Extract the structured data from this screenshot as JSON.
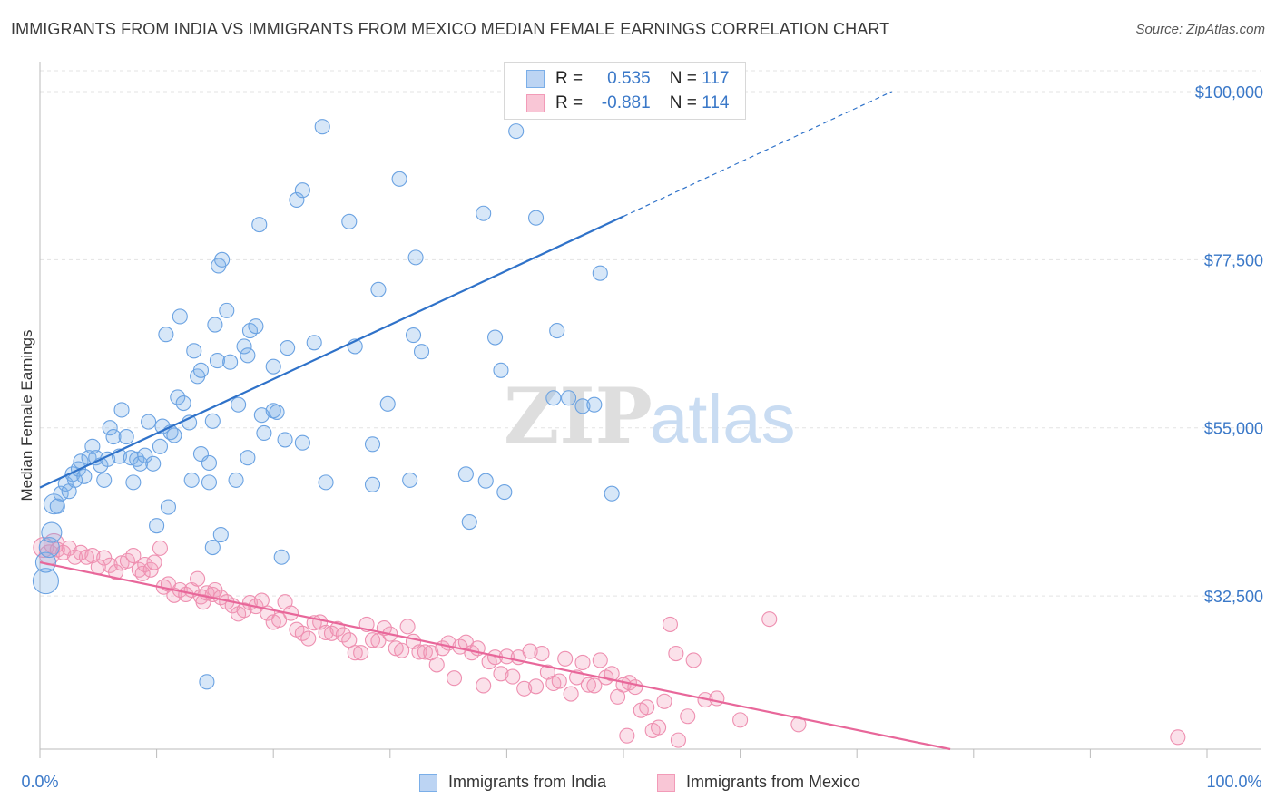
{
  "title": "IMMIGRANTS FROM INDIA VS IMMIGRANTS FROM MEXICO MEDIAN FEMALE EARNINGS CORRELATION CHART",
  "source": "Source: ZipAtlas.com",
  "watermark": {
    "zip": "ZIP",
    "atlas": "atlas"
  },
  "colors": {
    "india": "#7aaee8",
    "mexico": "#f29bb8",
    "india_line": "#2f72c9",
    "mexico_line": "#e8679a",
    "tick_text": "#3a78c8"
  },
  "legend": {
    "india": {
      "r_label": "R =",
      "r_value": "0.535",
      "n_label": "N =",
      "n_value": "117"
    },
    "mexico": {
      "r_label": "R =",
      "r_value": "-0.881",
      "n_label": "N =",
      "n_value": "114"
    }
  },
  "chart_data": {
    "type": "scatter",
    "title": "IMMIGRANTS FROM INDIA VS IMMIGRANTS FROM MEXICO MEDIAN FEMALE EARNINGS CORRELATION CHART",
    "xlabel": "",
    "ylabel": "Median Female Earnings",
    "xlim": [
      0,
      100
    ],
    "ylim": [
      12000,
      104000
    ],
    "x_ticks": [
      "0.0%",
      "100.0%"
    ],
    "y_ticks": [
      {
        "value": 32500,
        "label": "$32,500"
      },
      {
        "value": 55000,
        "label": "$55,000"
      },
      {
        "value": 77500,
        "label": "$77,500"
      },
      {
        "value": 100000,
        "label": "$100,000"
      }
    ],
    "grid": true,
    "legend_position": "top-center",
    "series": [
      {
        "name": "Immigrants from India",
        "r": 0.535,
        "n": 117,
        "trend": {
          "x0": 0,
          "y0": 47000,
          "x1": 50,
          "y1": 83300,
          "dashed_to_x": 73,
          "dashed_to_y": 100000
        },
        "points": [
          [
            0.5,
            34500,
            3
          ],
          [
            0.5,
            37000,
            2
          ],
          [
            0.8,
            39000,
            2
          ],
          [
            1,
            41000,
            2
          ],
          [
            1.2,
            44800,
            2
          ],
          [
            1.5,
            44500,
            1
          ],
          [
            1.8,
            46200,
            1
          ],
          [
            2.2,
            47500,
            1
          ],
          [
            2.5,
            46500,
            1
          ],
          [
            2.8,
            48800,
            1
          ],
          [
            3,
            48000,
            1
          ],
          [
            3.3,
            49500,
            1
          ],
          [
            3.5,
            50500,
            1
          ],
          [
            3.8,
            48500,
            1
          ],
          [
            4.2,
            51000,
            1
          ],
          [
            4.5,
            52500,
            1
          ],
          [
            4.8,
            51000,
            1
          ],
          [
            5.2,
            50000,
            1
          ],
          [
            5.5,
            48000,
            1
          ],
          [
            5.8,
            50800,
            1
          ],
          [
            6,
            55000,
            1
          ],
          [
            6.3,
            53800,
            1
          ],
          [
            6.8,
            51200,
            1
          ],
          [
            7,
            57400,
            1
          ],
          [
            7.4,
            53800,
            1
          ],
          [
            7.8,
            51000,
            1
          ],
          [
            8,
            47700,
            1
          ],
          [
            8.3,
            50800,
            1
          ],
          [
            8.6,
            50200,
            1
          ],
          [
            9,
            51300,
            1
          ],
          [
            9.3,
            55800,
            1
          ],
          [
            9.7,
            50200,
            1
          ],
          [
            10,
            41900,
            1
          ],
          [
            10.3,
            52500,
            1
          ],
          [
            10.5,
            55200,
            1
          ],
          [
            10.8,
            67500,
            1
          ],
          [
            11,
            44400,
            1
          ],
          [
            11.2,
            54400,
            1
          ],
          [
            11.5,
            54000,
            1
          ],
          [
            11.8,
            59100,
            1
          ],
          [
            12,
            69900,
            1
          ],
          [
            12.3,
            58300,
            1
          ],
          [
            12.8,
            55700,
            1
          ],
          [
            13,
            48000,
            1
          ],
          [
            13.2,
            65300,
            1
          ],
          [
            13.5,
            61900,
            1
          ],
          [
            13.8,
            62700,
            1
          ],
          [
            13.8,
            51500,
            1
          ],
          [
            14.5,
            50300,
            1
          ],
          [
            14.8,
            39000,
            1
          ],
          [
            15,
            68800,
            1
          ],
          [
            15.2,
            64000,
            1
          ],
          [
            15.5,
            40700,
            1
          ],
          [
            14.5,
            47700,
            1
          ],
          [
            14.3,
            21000,
            1
          ],
          [
            14.8,
            55900,
            1
          ],
          [
            15.3,
            76700,
            1
          ],
          [
            15.6,
            77500,
            1
          ],
          [
            16,
            70700,
            1
          ],
          [
            16.3,
            63800,
            1
          ],
          [
            16.8,
            48000,
            1
          ],
          [
            17,
            58100,
            1
          ],
          [
            17.5,
            65900,
            1
          ],
          [
            17.8,
            51000,
            1
          ],
          [
            17.8,
            64700,
            1
          ],
          [
            18,
            68000,
            1
          ],
          [
            18.5,
            68600,
            1
          ],
          [
            18.8,
            82200,
            1
          ],
          [
            19,
            56700,
            1
          ],
          [
            19.2,
            54300,
            1
          ],
          [
            20,
            63200,
            1
          ],
          [
            20,
            57300,
            1
          ],
          [
            20.3,
            57100,
            1
          ],
          [
            20.7,
            37700,
            1
          ],
          [
            21,
            53400,
            1
          ],
          [
            21.2,
            65700,
            1
          ],
          [
            22,
            85500,
            1
          ],
          [
            22.5,
            86800,
            1
          ],
          [
            22.5,
            53000,
            1
          ],
          [
            23.5,
            66400,
            1
          ],
          [
            24.2,
            95300,
            1
          ],
          [
            24.5,
            47700,
            1
          ],
          [
            26.5,
            82600,
            1
          ],
          [
            27,
            65900,
            1
          ],
          [
            28.5,
            52800,
            1
          ],
          [
            29,
            73500,
            1
          ],
          [
            28.5,
            47400,
            1
          ],
          [
            29.8,
            58200,
            1
          ],
          [
            30.8,
            88300,
            1
          ],
          [
            31.7,
            48000,
            1
          ],
          [
            32,
            67400,
            1
          ],
          [
            32.2,
            77800,
            1
          ],
          [
            32.7,
            65200,
            1
          ],
          [
            36.5,
            48800,
            1
          ],
          [
            36.8,
            42400,
            1
          ],
          [
            38,
            83700,
            1
          ],
          [
            38.2,
            47900,
            1
          ],
          [
            39,
            67100,
            1
          ],
          [
            39.5,
            62700,
            1
          ],
          [
            39.8,
            46400,
            1
          ],
          [
            40.8,
            94700,
            1
          ],
          [
            42.5,
            83100,
            1
          ],
          [
            44,
            59000,
            1
          ],
          [
            44.3,
            68000,
            1
          ],
          [
            45.3,
            59000,
            1
          ],
          [
            46.5,
            57900,
            1
          ],
          [
            47.5,
            58100,
            1
          ],
          [
            48,
            75700,
            1
          ],
          [
            49,
            46200,
            1
          ]
        ]
      },
      {
        "name": "Immigrants from Mexico",
        "r": -0.881,
        "n": 114,
        "trend": {
          "x0": 0,
          "y0": 37000,
          "x1": 78,
          "y1": 12000
        },
        "points": [
          [
            0.3,
            39000,
            2
          ],
          [
            0.8,
            38000,
            2
          ],
          [
            1.2,
            39500,
            2
          ],
          [
            1.5,
            38700,
            1
          ],
          [
            2,
            38300,
            1
          ],
          [
            2.5,
            38900,
            1
          ],
          [
            3,
            37700,
            1
          ],
          [
            3.5,
            38300,
            1
          ],
          [
            4,
            37700,
            1
          ],
          [
            4.5,
            37900,
            1
          ],
          [
            5,
            36400,
            1
          ],
          [
            5.5,
            37600,
            1
          ],
          [
            6,
            36600,
            1
          ],
          [
            6.5,
            35700,
            1
          ],
          [
            7,
            36900,
            1
          ],
          [
            7.5,
            37200,
            1
          ],
          [
            8,
            37900,
            1
          ],
          [
            8.5,
            36000,
            1
          ],
          [
            8.8,
            35500,
            1
          ],
          [
            9,
            36700,
            1
          ],
          [
            9.5,
            36000,
            1
          ],
          [
            9.8,
            37000,
            1
          ],
          [
            10.3,
            38900,
            1
          ],
          [
            10.6,
            33700,
            1
          ],
          [
            11,
            34100,
            1
          ],
          [
            11.5,
            32600,
            1
          ],
          [
            12,
            33300,
            1
          ],
          [
            12.5,
            32700,
            1
          ],
          [
            13,
            33300,
            1
          ],
          [
            13.5,
            34800,
            1
          ],
          [
            13.8,
            32400,
            1
          ],
          [
            14,
            31700,
            1
          ],
          [
            14.3,
            32900,
            1
          ],
          [
            14.8,
            32700,
            1
          ],
          [
            15,
            33300,
            1
          ],
          [
            15.5,
            32300,
            1
          ],
          [
            16,
            31700,
            1
          ],
          [
            16.5,
            31200,
            1
          ],
          [
            17,
            30100,
            1
          ],
          [
            17.5,
            30600,
            1
          ],
          [
            18,
            31600,
            1
          ],
          [
            18.5,
            31100,
            1
          ],
          [
            19,
            31900,
            1
          ],
          [
            19.5,
            30200,
            1
          ],
          [
            20,
            29000,
            1
          ],
          [
            20.5,
            29300,
            1
          ],
          [
            21,
            31700,
            1
          ],
          [
            21.5,
            30200,
            1
          ],
          [
            22,
            28000,
            1
          ],
          [
            22.5,
            27500,
            1
          ],
          [
            23,
            26800,
            1
          ],
          [
            23.5,
            28900,
            1
          ],
          [
            24,
            29000,
            1
          ],
          [
            24.5,
            27600,
            1
          ],
          [
            25,
            27500,
            1
          ],
          [
            25.5,
            28100,
            1
          ],
          [
            26,
            27300,
            1
          ],
          [
            26.5,
            26600,
            1
          ],
          [
            27,
            24900,
            1
          ],
          [
            27.5,
            24900,
            1
          ],
          [
            28,
            28700,
            1
          ],
          [
            28.5,
            26600,
            1
          ],
          [
            29,
            26500,
            1
          ],
          [
            29.5,
            28200,
            1
          ],
          [
            30,
            27400,
            1
          ],
          [
            30.5,
            25500,
            1
          ],
          [
            31,
            25200,
            1
          ],
          [
            31.5,
            28400,
            1
          ],
          [
            32,
            26400,
            1
          ],
          [
            32.5,
            25000,
            1
          ],
          [
            33,
            25000,
            1
          ],
          [
            33.5,
            24900,
            1
          ],
          [
            34,
            23300,
            1
          ],
          [
            34.5,
            25500,
            1
          ],
          [
            35,
            26200,
            1
          ],
          [
            35.5,
            21500,
            1
          ],
          [
            36,
            25700,
            1
          ],
          [
            36.5,
            26300,
            1
          ],
          [
            37,
            24900,
            1
          ],
          [
            37.5,
            25500,
            1
          ],
          [
            38,
            20500,
            1
          ],
          [
            38.5,
            23700,
            1
          ],
          [
            39,
            24300,
            1
          ],
          [
            39.5,
            22100,
            1
          ],
          [
            40,
            24400,
            1
          ],
          [
            40.5,
            21700,
            1
          ],
          [
            41,
            24300,
            1
          ],
          [
            41.5,
            20100,
            1
          ],
          [
            42,
            25100,
            1
          ],
          [
            42.5,
            20400,
            1
          ],
          [
            43,
            24800,
            1
          ],
          [
            43.5,
            22300,
            1
          ],
          [
            44,
            20800,
            1
          ],
          [
            44.5,
            21100,
            1
          ],
          [
            45,
            24100,
            1
          ],
          [
            45.5,
            19400,
            1
          ],
          [
            46,
            21600,
            1
          ],
          [
            46.5,
            23600,
            1
          ],
          [
            47,
            20600,
            1
          ],
          [
            47.5,
            20500,
            1
          ],
          [
            48,
            23900,
            1
          ],
          [
            48.5,
            21600,
            1
          ],
          [
            49,
            22100,
            1
          ],
          [
            49.5,
            19000,
            1
          ],
          [
            50,
            20600,
            1
          ],
          [
            50.5,
            20900,
            1
          ],
          [
            51,
            20300,
            1
          ],
          [
            51.5,
            17200,
            1
          ],
          [
            52,
            17600,
            1
          ],
          [
            52.5,
            14500,
            1
          ],
          [
            53,
            14900,
            1
          ],
          [
            53.5,
            18400,
            1
          ],
          [
            54,
            28700,
            1
          ],
          [
            54.5,
            24800,
            1
          ],
          [
            55.5,
            16400,
            1
          ],
          [
            56,
            23900,
            1
          ],
          [
            57,
            18600,
            1
          ],
          [
            58,
            18800,
            1
          ],
          [
            60,
            15900,
            1
          ],
          [
            62.5,
            29400,
            1
          ],
          [
            65,
            15300,
            1
          ],
          [
            97.5,
            13600,
            1
          ],
          [
            50.3,
            13800,
            1
          ],
          [
            54.7,
            13200,
            1
          ]
        ]
      }
    ]
  },
  "bottom_legend": {
    "india": "Immigrants from India",
    "mexico": "Immigrants from Mexico"
  }
}
